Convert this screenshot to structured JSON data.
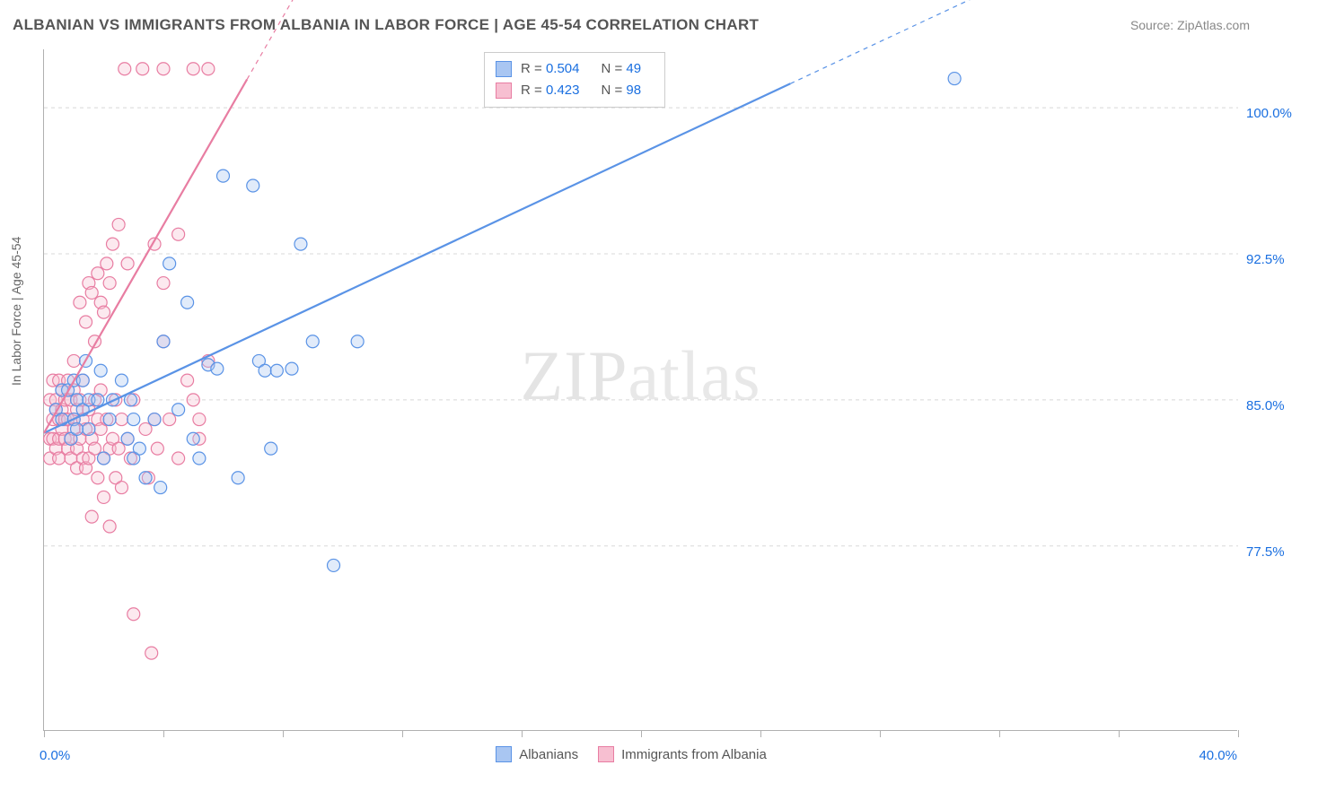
{
  "header": {
    "title": "ALBANIAN VS IMMIGRANTS FROM ALBANIA IN LABOR FORCE | AGE 45-54 CORRELATION CHART",
    "source": "Source: ZipAtlas.com"
  },
  "watermark": {
    "zip": "ZIP",
    "atlas": "atlas"
  },
  "chart": {
    "type": "scatter",
    "background_color": "#ffffff",
    "grid_color": "#d8d8d8",
    "axis_color": "#b0b0b0",
    "xlim": [
      0,
      40
    ],
    "ylim": [
      68,
      103
    ],
    "xlabel_min": "0.0%",
    "xlabel_max": "40.0%",
    "xtick_positions": [
      0,
      4,
      8,
      12,
      16,
      20,
      24,
      28,
      32,
      36,
      40
    ],
    "yticks": [
      {
        "value": 77.5,
        "label": "77.5%"
      },
      {
        "value": 85.0,
        "label": "85.0%"
      },
      {
        "value": 92.5,
        "label": "92.5%"
      },
      {
        "value": 100.0,
        "label": "100.0%"
      }
    ],
    "yaxis_title": "In Labor Force | Age 45-54",
    "marker_radius": 7,
    "marker_stroke_width": 1.2,
    "marker_fill_opacity": 0.35,
    "line_width": 2.2,
    "series": [
      {
        "key": "albanians",
        "label": "Albanians",
        "color_stroke": "#5a93e6",
        "color_fill": "#a9c6f2",
        "R": "0.504",
        "N": "49",
        "trend": {
          "x1": 0.0,
          "y1": 83.3,
          "x2": 40.0,
          "y2": 112.0,
          "dash_after_x": 25.0
        },
        "points": [
          [
            0.4,
            84.5
          ],
          [
            0.6,
            85.5
          ],
          [
            0.6,
            84.0
          ],
          [
            0.8,
            85.5
          ],
          [
            0.9,
            83.0
          ],
          [
            1.0,
            86.0
          ],
          [
            1.0,
            84.0
          ],
          [
            1.1,
            85.0
          ],
          [
            1.1,
            83.5
          ],
          [
            1.3,
            84.5
          ],
          [
            1.3,
            86.0
          ],
          [
            1.4,
            87.0
          ],
          [
            1.5,
            85.0
          ],
          [
            1.5,
            83.5
          ],
          [
            1.8,
            85.0
          ],
          [
            1.9,
            86.5
          ],
          [
            2.0,
            82.0
          ],
          [
            2.2,
            84.0
          ],
          [
            2.3,
            85.0
          ],
          [
            2.6,
            86.0
          ],
          [
            2.8,
            83.0
          ],
          [
            2.9,
            85.0
          ],
          [
            3.0,
            84.0
          ],
          [
            3.0,
            82.0
          ],
          [
            3.2,
            82.5
          ],
          [
            3.4,
            81.0
          ],
          [
            3.7,
            84.0
          ],
          [
            3.9,
            80.5
          ],
          [
            4.0,
            88.0
          ],
          [
            4.2,
            92.0
          ],
          [
            4.5,
            84.5
          ],
          [
            4.8,
            90.0
          ],
          [
            5.0,
            83.0
          ],
          [
            5.2,
            82.0
          ],
          [
            5.5,
            86.8
          ],
          [
            5.8,
            86.6
          ],
          [
            6.0,
            96.5
          ],
          [
            6.5,
            81.0
          ],
          [
            7.0,
            96.0
          ],
          [
            7.2,
            87.0
          ],
          [
            7.4,
            86.5
          ],
          [
            7.6,
            82.5
          ],
          [
            7.8,
            86.5
          ],
          [
            8.3,
            86.6
          ],
          [
            8.6,
            93.0
          ],
          [
            9.0,
            88.0
          ],
          [
            9.7,
            76.5
          ],
          [
            10.5,
            88.0
          ],
          [
            30.5,
            101.5
          ]
        ]
      },
      {
        "key": "immigrants",
        "label": "Immigrants from Albania",
        "color_stroke": "#e87da2",
        "color_fill": "#f7bfd1",
        "R": "0.423",
        "N": "98",
        "trend": {
          "x1": 0.0,
          "y1": 83.3,
          "x2": 10.0,
          "y2": 110.0,
          "dash_after_x": 6.8
        },
        "points": [
          [
            0.2,
            83.0
          ],
          [
            0.2,
            85.0
          ],
          [
            0.2,
            82.0
          ],
          [
            0.3,
            84.0
          ],
          [
            0.3,
            83.0
          ],
          [
            0.3,
            86.0
          ],
          [
            0.4,
            82.5
          ],
          [
            0.4,
            85.0
          ],
          [
            0.4,
            84.5
          ],
          [
            0.5,
            83.0
          ],
          [
            0.5,
            84.0
          ],
          [
            0.5,
            82.0
          ],
          [
            0.5,
            86.0
          ],
          [
            0.6,
            84.5
          ],
          [
            0.6,
            83.5
          ],
          [
            0.6,
            85.5
          ],
          [
            0.7,
            83.0
          ],
          [
            0.7,
            85.0
          ],
          [
            0.7,
            84.0
          ],
          [
            0.8,
            82.5
          ],
          [
            0.8,
            86.0
          ],
          [
            0.8,
            84.0
          ],
          [
            0.9,
            83.0
          ],
          [
            0.9,
            85.0
          ],
          [
            0.9,
            82.0
          ],
          [
            1.0,
            84.0
          ],
          [
            1.0,
            83.5
          ],
          [
            1.0,
            85.5
          ],
          [
            1.0,
            87.0
          ],
          [
            1.1,
            82.5
          ],
          [
            1.1,
            84.5
          ],
          [
            1.1,
            81.5
          ],
          [
            1.2,
            83.0
          ],
          [
            1.2,
            85.0
          ],
          [
            1.2,
            90.0
          ],
          [
            1.3,
            82.0
          ],
          [
            1.3,
            84.0
          ],
          [
            1.3,
            86.0
          ],
          [
            1.4,
            89.0
          ],
          [
            1.4,
            81.5
          ],
          [
            1.4,
            83.5
          ],
          [
            1.5,
            91.0
          ],
          [
            1.5,
            82.0
          ],
          [
            1.5,
            84.5
          ],
          [
            1.6,
            90.5
          ],
          [
            1.6,
            83.0
          ],
          [
            1.6,
            79.0
          ],
          [
            1.7,
            88.0
          ],
          [
            1.7,
            82.5
          ],
          [
            1.7,
            85.0
          ],
          [
            1.8,
            91.5
          ],
          [
            1.8,
            81.0
          ],
          [
            1.8,
            84.0
          ],
          [
            1.9,
            90.0
          ],
          [
            1.9,
            83.5
          ],
          [
            1.9,
            85.5
          ],
          [
            2.0,
            89.5
          ],
          [
            2.0,
            82.0
          ],
          [
            2.0,
            80.0
          ],
          [
            2.1,
            92.0
          ],
          [
            2.1,
            84.0
          ],
          [
            2.2,
            91.0
          ],
          [
            2.2,
            82.5
          ],
          [
            2.2,
            78.5
          ],
          [
            2.3,
            83.0
          ],
          [
            2.3,
            93.0
          ],
          [
            2.4,
            85.0
          ],
          [
            2.4,
            81.0
          ],
          [
            2.5,
            94.0
          ],
          [
            2.5,
            82.5
          ],
          [
            2.6,
            84.0
          ],
          [
            2.6,
            80.5
          ],
          [
            2.7,
            102.0
          ],
          [
            2.8,
            92.0
          ],
          [
            2.8,
            83.0
          ],
          [
            2.9,
            82.0
          ],
          [
            3.0,
            85.0
          ],
          [
            3.0,
            74.0
          ],
          [
            3.3,
            102.0
          ],
          [
            3.4,
            83.5
          ],
          [
            3.5,
            81.0
          ],
          [
            3.6,
            72.0
          ],
          [
            3.7,
            93.0
          ],
          [
            3.7,
            84.0
          ],
          [
            3.8,
            82.5
          ],
          [
            4.0,
            88.0
          ],
          [
            4.0,
            91.0
          ],
          [
            4.0,
            102.0
          ],
          [
            4.2,
            84.0
          ],
          [
            4.5,
            82.0
          ],
          [
            4.5,
            93.5
          ],
          [
            4.8,
            86.0
          ],
          [
            5.0,
            85.0
          ],
          [
            5.0,
            102.0
          ],
          [
            5.2,
            84.0
          ],
          [
            5.2,
            83.0
          ],
          [
            5.5,
            87.0
          ],
          [
            5.5,
            102.0
          ]
        ]
      }
    ]
  },
  "legend_top_labels": {
    "R_prefix": "R = ",
    "N_prefix": "N = "
  }
}
